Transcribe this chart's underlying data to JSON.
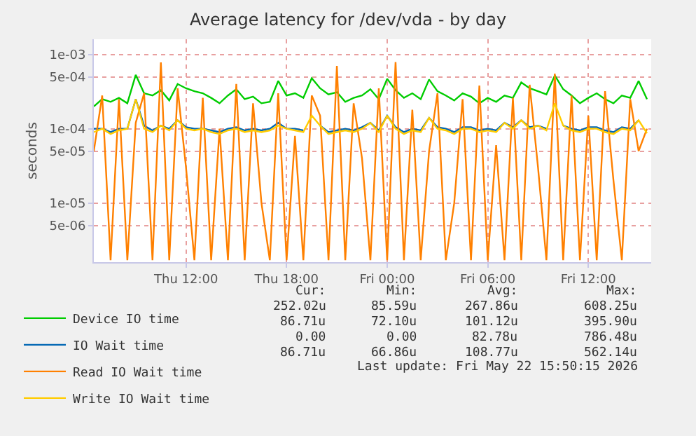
{
  "chart_data": {
    "type": "line",
    "title": "Average latency for /dev/vda - by day",
    "ylabel": "seconds",
    "log": "y",
    "grid": true,
    "legend": "bottom",
    "marker": "none",
    "line_style": "solid",
    "xlim": [
      "2026-05-21T06:30",
      "2026-05-22T15:45"
    ],
    "xticks": [
      {
        "value": "2026-05-21T12:00",
        "label": "Thu 12:00"
      },
      {
        "value": "2026-05-21T18:00",
        "label": "Thu 18:00"
      },
      {
        "value": "2026-05-22T00:00",
        "label": "Fri 00:00"
      },
      {
        "value": "2026-05-22T06:00",
        "label": "Fri 06:00"
      },
      {
        "value": "2026-05-22T12:00",
        "label": "Fri 12:00"
      }
    ],
    "ylim": [
      1.6e-06,
      0.0016
    ],
    "yticks": [
      {
        "value": 0.001,
        "label": "1e-03"
      },
      {
        "value": 0.0005,
        "label": "5e-04"
      },
      {
        "value": 0.0001,
        "label": "1e-04"
      },
      {
        "value": 5e-05,
        "label": "5e-05"
      },
      {
        "value": 1e-05,
        "label": "1e-05"
      },
      {
        "value": 5e-06,
        "label": "5e-06"
      }
    ],
    "x": [
      "2026-05-21T06:30",
      "2026-05-21T07:00",
      "2026-05-21T07:30",
      "2026-05-21T08:00",
      "2026-05-21T08:30",
      "2026-05-21T09:00",
      "2026-05-21T09:30",
      "2026-05-21T10:00",
      "2026-05-21T10:30",
      "2026-05-21T11:00",
      "2026-05-21T11:30",
      "2026-05-21T12:00",
      "2026-05-21T12:30",
      "2026-05-21T13:00",
      "2026-05-21T13:30",
      "2026-05-21T14:00",
      "2026-05-21T14:30",
      "2026-05-21T15:00",
      "2026-05-21T15:30",
      "2026-05-21T16:00",
      "2026-05-21T16:30",
      "2026-05-21T17:00",
      "2026-05-21T17:30",
      "2026-05-21T18:00",
      "2026-05-21T18:30",
      "2026-05-21T19:00",
      "2026-05-21T19:30",
      "2026-05-21T20:00",
      "2026-05-21T20:30",
      "2026-05-21T21:00",
      "2026-05-21T21:30",
      "2026-05-21T22:00",
      "2026-05-21T22:30",
      "2026-05-21T23:00",
      "2026-05-21T23:30",
      "2026-05-22T00:00",
      "2026-05-22T00:30",
      "2026-05-22T01:00",
      "2026-05-22T01:30",
      "2026-05-22T02:00",
      "2026-05-22T02:30",
      "2026-05-22T03:00",
      "2026-05-22T03:30",
      "2026-05-22T04:00",
      "2026-05-22T04:30",
      "2026-05-22T05:00",
      "2026-05-22T05:30",
      "2026-05-22T06:00",
      "2026-05-22T06:30",
      "2026-05-22T07:00",
      "2026-05-22T07:30",
      "2026-05-22T08:00",
      "2026-05-22T08:30",
      "2026-05-22T09:00",
      "2026-05-22T09:30",
      "2026-05-22T10:00",
      "2026-05-22T10:30",
      "2026-05-22T11:00",
      "2026-05-22T11:30",
      "2026-05-22T12:00",
      "2026-05-22T12:30",
      "2026-05-22T13:00",
      "2026-05-22T13:30",
      "2026-05-22T14:00",
      "2026-05-22T14:30",
      "2026-05-22T15:00",
      "2026-05-22T15:30"
    ],
    "series": [
      {
        "name": "Device IO time",
        "color": "#00cc00",
        "values": [
          0.0002,
          0.00025,
          0.00023,
          0.00026,
          0.00022,
          0.00053,
          0.0003,
          0.00028,
          0.00033,
          0.00024,
          0.0004,
          0.00035,
          0.00032,
          0.0003,
          0.00026,
          0.00022,
          0.00028,
          0.00034,
          0.00025,
          0.00027,
          0.00022,
          0.00023,
          0.00044,
          0.00028,
          0.0003,
          0.00026,
          0.00048,
          0.00035,
          0.00029,
          0.00031,
          0.00023,
          0.00026,
          0.00028,
          0.00034,
          0.00025,
          0.00047,
          0.00033,
          0.00026,
          0.0003,
          0.00025,
          0.00046,
          0.00032,
          0.00028,
          0.00024,
          0.0003,
          0.00027,
          0.00022,
          0.00026,
          0.00023,
          0.00028,
          0.00026,
          0.00042,
          0.00035,
          0.00032,
          0.00029,
          0.00052,
          0.00034,
          0.00028,
          0.00022,
          0.00026,
          0.0003,
          0.00025,
          0.00022,
          0.00028,
          0.00026,
          0.00044,
          0.00025
        ]
      },
      {
        "name": "IO Wait time",
        "color": "#0066b3",
        "values": [
          0.0001,
          0.0001,
          9e-05,
          0.0001,
          0.0001,
          0.00025,
          0.00011,
          9.5e-05,
          0.00011,
          0.0001,
          0.00013,
          0.000105,
          0.0001,
          0.0001,
          9.5e-05,
          9e-05,
          0.0001,
          0.000105,
          9.5e-05,
          0.0001,
          9.5e-05,
          0.0001,
          0.00012,
          0.0001,
          0.0001,
          9.5e-05,
          null,
          0.00011,
          9e-05,
          9.5e-05,
          0.0001,
          9.5e-05,
          0.000105,
          0.00012,
          9.5e-05,
          0.00015,
          0.000105,
          9e-05,
          0.0001,
          9.5e-05,
          0.00014,
          0.000105,
          0.0001,
          9e-05,
          0.000105,
          0.000105,
          9.5e-05,
          0.0001,
          9.5e-05,
          0.00012,
          0.000105,
          0.00013,
          0.000105,
          0.00011,
          0.0001,
          null,
          0.00011,
          0.0001,
          9.5e-05,
          0.000105,
          0.000105,
          9.5e-05,
          9e-05,
          0.000105,
          0.0001,
          0.00013,
          null
        ]
      },
      {
        "name": "Read IO Wait time",
        "color": "#ff8000",
        "values": [
          5e-05,
          0.00028,
          1.7e-06,
          0.00025,
          1.7e-06,
          0.00012,
          0.0003,
          1.7e-06,
          0.00078,
          1.7e-06,
          0.00035,
          3e-05,
          1.7e-06,
          0.00026,
          1.7e-06,
          0.0001,
          1.7e-06,
          0.0004,
          1.7e-06,
          0.00022,
          1e-05,
          1.7e-06,
          0.0003,
          1.7e-06,
          8e-05,
          1.7e-06,
          0.00028,
          0.00015,
          1.7e-06,
          0.0007,
          1.7e-06,
          0.00022,
          4e-05,
          1.7e-06,
          0.00035,
          1.7e-06,
          0.00079,
          1.7e-06,
          0.00018,
          1.7e-06,
          5e-05,
          0.0003,
          1.7e-06,
          1e-05,
          0.00025,
          1.7e-06,
          0.00038,
          1.7e-06,
          6e-05,
          1.7e-06,
          0.00026,
          1.7e-06,
          0.00039,
          3e-05,
          1.7e-06,
          0.00055,
          1.7e-06,
          0.00028,
          1.7e-06,
          0.00015,
          1.7e-06,
          0.00032,
          2e-05,
          1.7e-06,
          0.00025,
          5e-05,
          0.0001
        ]
      },
      {
        "name": "Write IO Wait time",
        "color": "#ffcc00",
        "values": [
          9e-05,
          0.0001,
          8.5e-05,
          9.5e-05,
          0.0001,
          0.00025,
          0.0001,
          9e-05,
          0.00011,
          9.5e-05,
          0.00013,
          0.0001,
          9.5e-05,
          0.0001,
          9e-05,
          8.5e-05,
          9.5e-05,
          0.0001,
          9e-05,
          9.5e-05,
          9e-05,
          9.5e-05,
          0.00011,
          0.0001,
          9.5e-05,
          9e-05,
          0.00015,
          0.00011,
          8.5e-05,
          9e-05,
          9.5e-05,
          9e-05,
          0.0001,
          0.00012,
          9e-05,
          0.00015,
          0.0001,
          8.5e-05,
          9.5e-05,
          9e-05,
          0.00014,
          0.0001,
          9.5e-05,
          8.5e-05,
          0.0001,
          0.0001,
          9e-05,
          9.5e-05,
          9e-05,
          0.00012,
          0.0001,
          0.00013,
          0.0001,
          0.00011,
          9.5e-05,
          0.00022,
          0.00011,
          9.5e-05,
          9e-05,
          0.0001,
          0.0001,
          9e-05,
          8.5e-05,
          0.0001,
          9.5e-05,
          0.00013,
          8.7e-05
        ]
      }
    ],
    "annotations": [
      "Cur:",
      "Min:",
      "Avg:",
      "Max:",
      "252.02u",
      "85.59u",
      "267.86u",
      "608.25u",
      "86.71u",
      "72.10u",
      "101.12u",
      "395.90u",
      "0.00",
      "0.00",
      "82.78u",
      "786.48u",
      "86.71u",
      "66.86u",
      "108.77u",
      "562.14u",
      "Last update: Fri May 22 15:50:15 2026"
    ]
  }
}
